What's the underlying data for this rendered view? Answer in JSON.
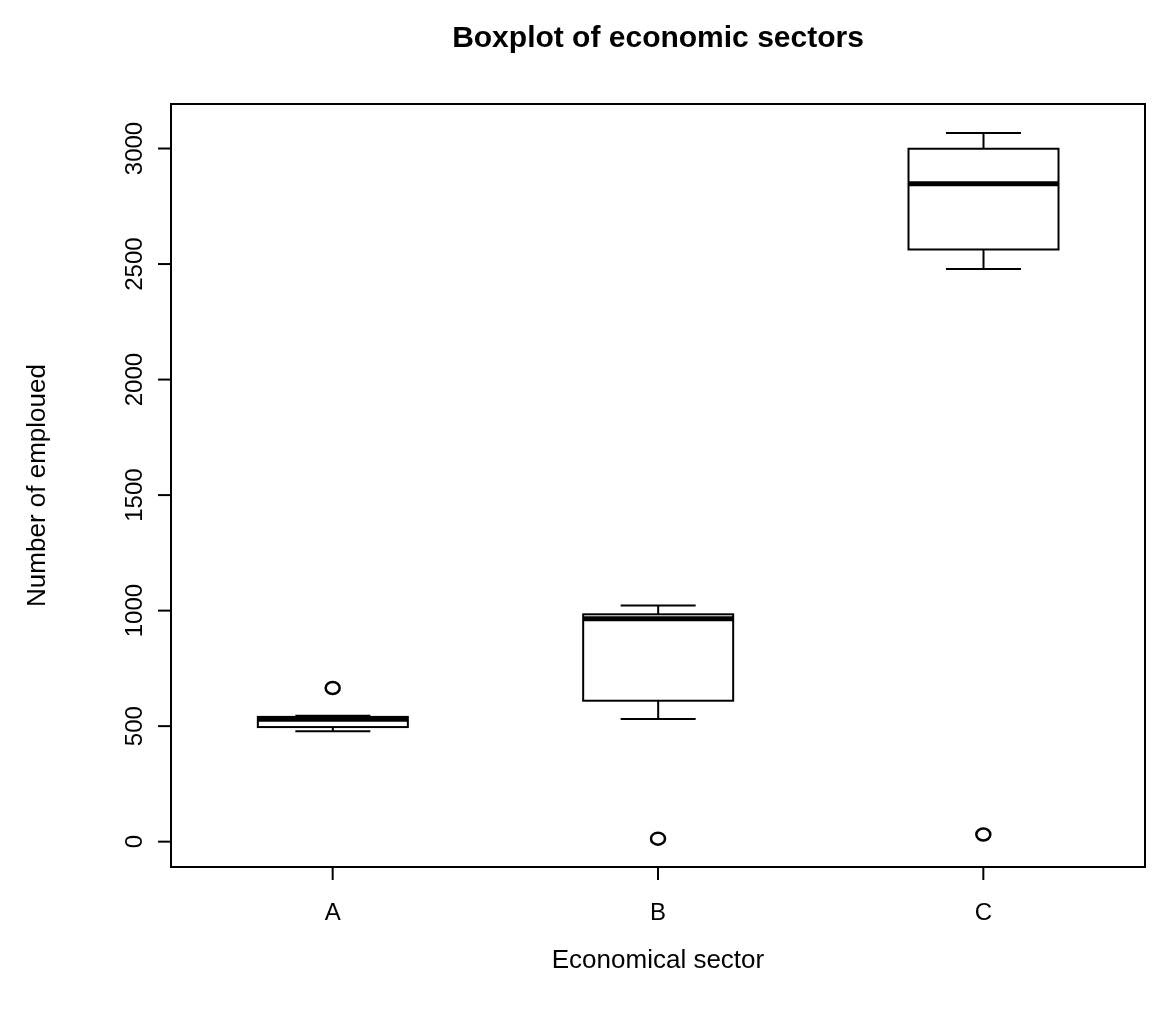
{
  "chart_data": {
    "type": "box",
    "title": "Boxplot of economic sectors",
    "xlabel": "Economical sector",
    "ylabel": "Number of emploued",
    "categories": [
      "A",
      "B",
      "C"
    ],
    "boxes": [
      {
        "low": 478,
        "q1": 496,
        "median": 530,
        "q3": 540,
        "high": 545,
        "outliers": [
          665
        ]
      },
      {
        "low": 531,
        "q1": 610,
        "median": 965,
        "q3": 984,
        "high": 1022,
        "outliers": [
          13
        ]
      },
      {
        "low": 2479,
        "q1": 2563,
        "median": 2848,
        "q3": 2999,
        "high": 3067,
        "outliers": [
          31
        ]
      }
    ],
    "ylim": [
      -114,
      3197
    ],
    "yticks": [
      0,
      500,
      1000,
      1500,
      2000,
      2500,
      3000
    ]
  }
}
